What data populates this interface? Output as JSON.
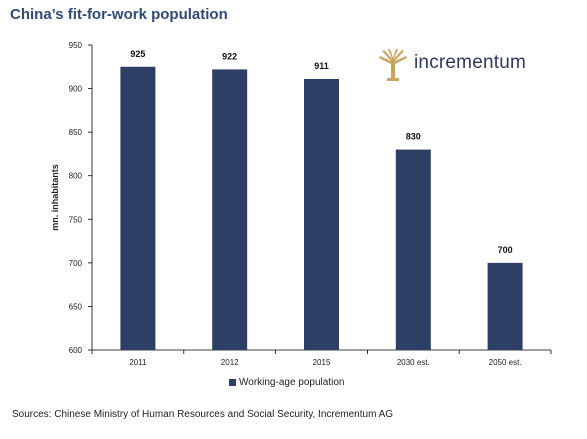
{
  "title": "China’s fit-for-work population",
  "logo": {
    "text": "incrementum",
    "icon": "tree-icon"
  },
  "source": "Sources: Chinese Ministry of Human Resources and Social Security, Incrementum AG",
  "colors": {
    "bar": "#2e3f66",
    "title": "#2e4a7a",
    "logo_icon": "#c9a45c"
  },
  "chart_data": {
    "type": "bar",
    "categories": [
      "2011",
      "2012",
      "2015",
      "2030 est.",
      "2050 est."
    ],
    "series": [
      {
        "name": "Working-age population",
        "values": [
          925,
          922,
          911,
          830,
          700
        ]
      }
    ],
    "data_labels": [
      "925",
      "922",
      "911",
      "830",
      "700"
    ],
    "ylabel": "mn. inhabitants",
    "ylim": [
      600,
      950
    ],
    "yticks": [
      600,
      650,
      700,
      750,
      800,
      850,
      900,
      950
    ],
    "ytick_labels": [
      "600",
      "650",
      "700",
      "750",
      "800",
      "850",
      "900",
      "950"
    ],
    "legend_position": "bottom",
    "grid": false
  }
}
